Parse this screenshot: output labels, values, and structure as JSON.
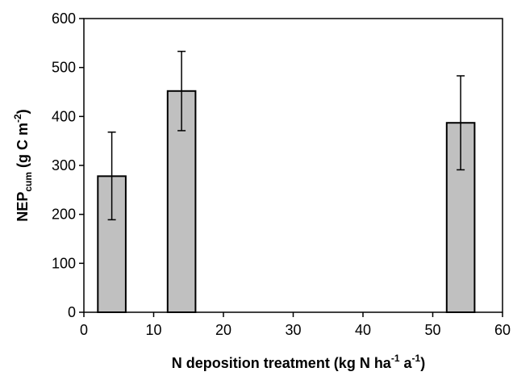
{
  "chart_data": {
    "type": "bar",
    "x": [
      4,
      14,
      54
    ],
    "values": [
      278,
      452,
      387
    ],
    "errors": [
      [
        189,
        368
      ],
      [
        371,
        533
      ],
      [
        291,
        483
      ]
    ],
    "bar_width": 4,
    "xlim": [
      0,
      60
    ],
    "ylim": [
      0,
      600
    ],
    "x_ticks": [
      0,
      10,
      20,
      30,
      40,
      50,
      60
    ],
    "y_ticks": [
      0,
      100,
      200,
      300,
      400,
      500,
      600
    ],
    "xlabel": {
      "main": "N deposition treatment (kg N ha",
      "sup1": "-1",
      "mid": " a",
      "sup2": "-1",
      "end": ")"
    },
    "ylabel": {
      "main": "NEP",
      "sub": "cum",
      "mid": " (g C m",
      "sup": "-2",
      "end": ")"
    },
    "grid": false,
    "bar_color": "#c0c0c0",
    "edge_color": "#000000"
  }
}
